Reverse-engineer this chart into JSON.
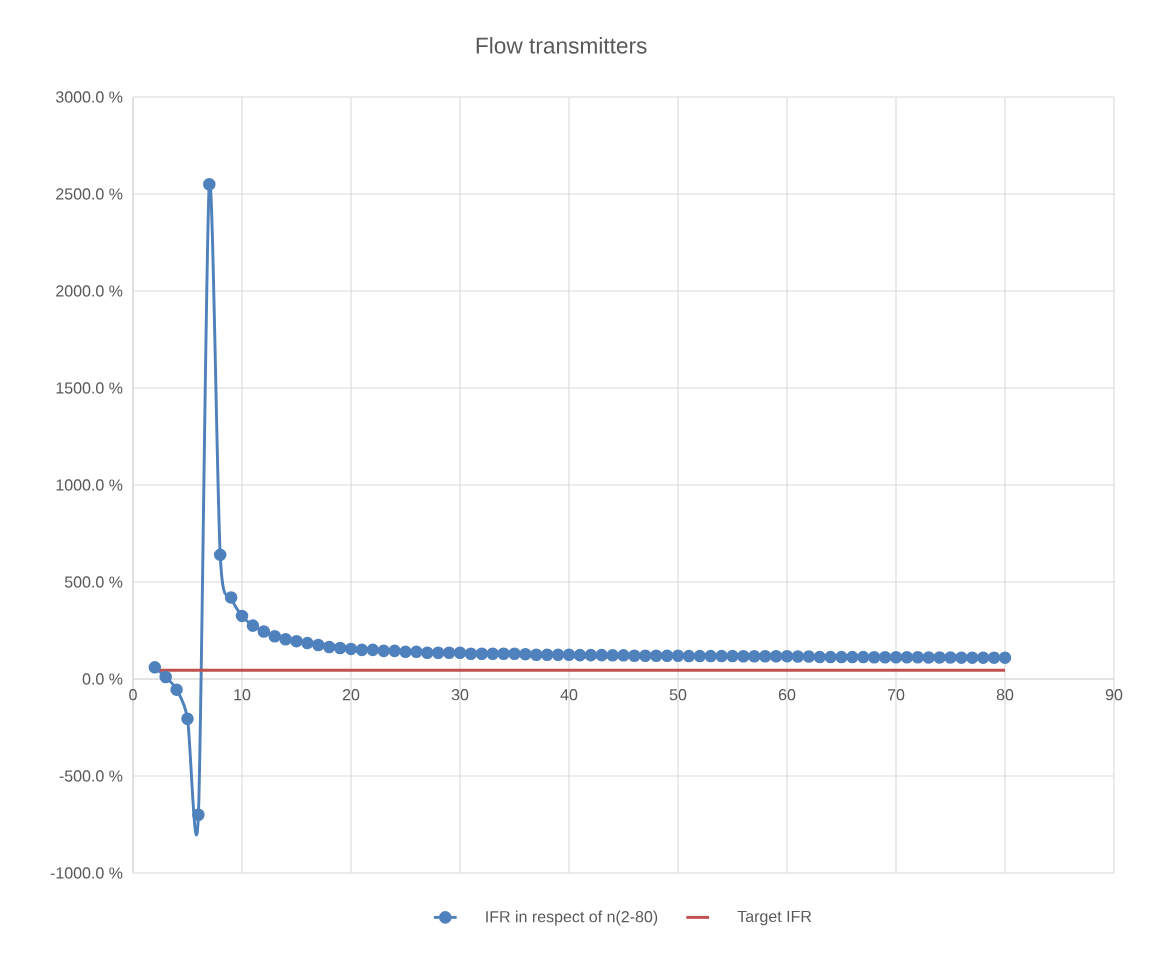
{
  "chart_data": {
    "type": "line",
    "title": "Flow transmitters",
    "xlim": [
      0,
      90
    ],
    "xticks": [
      0,
      10,
      20,
      30,
      40,
      50,
      60,
      70,
      80,
      90
    ],
    "ylim": [
      -1000,
      3000
    ],
    "yticks": [
      {
        "value": -1000,
        "label": "-1000.0 %"
      },
      {
        "value": -500,
        "label": "-500.0 %"
      },
      {
        "value": 0,
        "label": "0.0 %"
      },
      {
        "value": 500,
        "label": "500.0 %"
      },
      {
        "value": 1000,
        "label": "1000.0 %"
      },
      {
        "value": 1500,
        "label": "1500.0 %"
      },
      {
        "value": 2000,
        "label": "2000.0 %"
      },
      {
        "value": 2500,
        "label": "2500.0 %"
      },
      {
        "value": 3000,
        "label": "3000.0 %"
      }
    ],
    "grid": true,
    "legend": "bottom",
    "series": [
      {
        "name": "IFR in respect of n(2-80)",
        "color": "#4f81bd",
        "marker": "circle",
        "x": [
          2,
          3,
          4,
          5,
          6,
          7,
          8,
          9,
          10,
          11,
          12,
          13,
          14,
          15,
          16,
          17,
          18,
          19,
          20,
          21,
          22,
          23,
          24,
          25,
          26,
          27,
          28,
          29,
          30,
          31,
          32,
          33,
          34,
          35,
          36,
          37,
          38,
          39,
          40,
          41,
          42,
          43,
          44,
          45,
          46,
          47,
          48,
          49,
          50,
          51,
          52,
          53,
          54,
          55,
          56,
          57,
          58,
          59,
          60,
          61,
          62,
          63,
          64,
          65,
          66,
          67,
          68,
          69,
          70,
          71,
          72,
          73,
          74,
          75,
          76,
          77,
          78,
          79,
          80
        ],
        "values": [
          60,
          10,
          -55,
          -205,
          -700,
          2550,
          640,
          420,
          325,
          275,
          245,
          220,
          205,
          195,
          185,
          175,
          165,
          160,
          155,
          150,
          150,
          145,
          145,
          140,
          140,
          135,
          135,
          135,
          135,
          130,
          130,
          130,
          130,
          130,
          128,
          125,
          125,
          125,
          125,
          123,
          123,
          123,
          122,
          122,
          120,
          120,
          120,
          120,
          120,
          118,
          118,
          118,
          118,
          118,
          117,
          117,
          117,
          117,
          117,
          116,
          116,
          113,
          113,
          113,
          113,
          113,
          112,
          112,
          112,
          112,
          112,
          111,
          111,
          111,
          110,
          110,
          110,
          110,
          110
        ]
      },
      {
        "name": "Target IFR",
        "color": "#c0504d",
        "marker": "none",
        "x": [
          2,
          80
        ],
        "values": [
          45,
          45
        ]
      }
    ]
  }
}
